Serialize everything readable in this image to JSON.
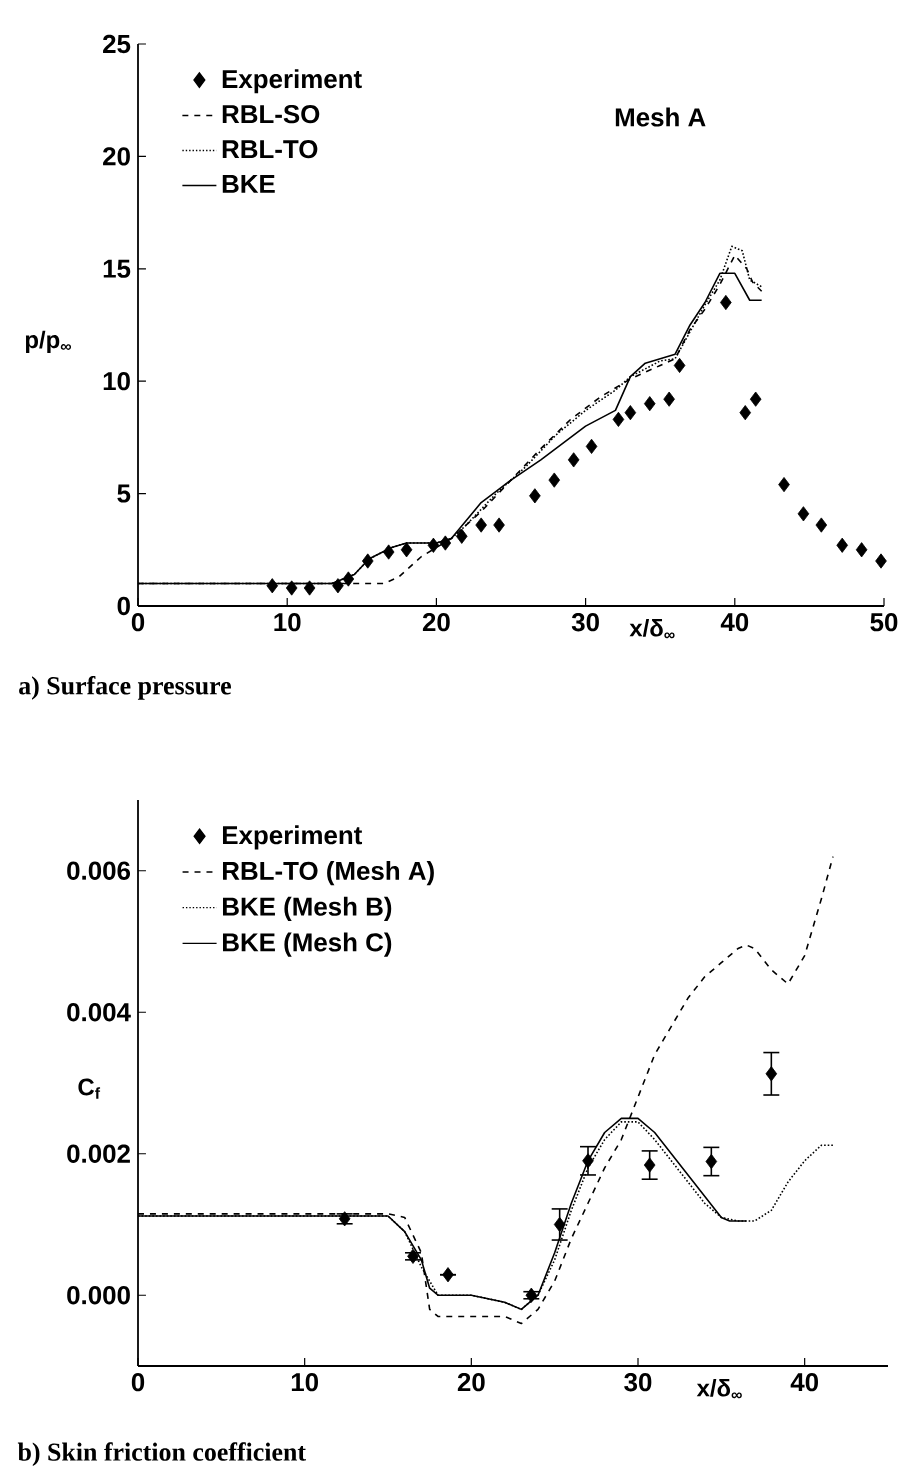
{
  "chart_data": [
    {
      "type": "line",
      "title": "a) Surface pressure",
      "xlabel": "x/δ$_{∞}$",
      "ylabel": "p/p$_{∞}$",
      "annotations": [
        "Mesh A"
      ],
      "xlim": [
        0,
        50
      ],
      "ylim": [
        0,
        25
      ],
      "xticks": [
        0,
        10,
        20,
        30,
        40,
        50
      ],
      "yticks": [
        0,
        5,
        10,
        15,
        20,
        25
      ],
      "legend": "top left",
      "grid": false,
      "series": [
        {
          "name": "Experiment",
          "type": "scatter",
          "marker": "diamond",
          "color": "#000000",
          "x": [
            9.0,
            10.3,
            11.5,
            13.4,
            14.1,
            15.4,
            16.8,
            18.0,
            19.8,
            20.6,
            21.7,
            23.0,
            24.2,
            26.6,
            27.9,
            29.2,
            30.4,
            32.2,
            33.0,
            34.3,
            35.6,
            36.3,
            39.4,
            40.7,
            41.4,
            43.3,
            44.6,
            45.8,
            47.2,
            48.5,
            49.8
          ],
          "values": [
            0.9,
            0.8,
            0.8,
            0.9,
            1.2,
            2.0,
            2.4,
            2.5,
            2.7,
            2.8,
            3.1,
            3.6,
            3.6,
            4.9,
            5.6,
            6.5,
            7.1,
            8.3,
            8.6,
            9.0,
            9.2,
            10.7,
            13.5,
            8.6,
            9.2,
            5.4,
            4.1,
            3.6,
            2.7,
            2.5,
            2.0
          ]
        },
        {
          "name": "RBL-SO",
          "line_style": "dashed",
          "color": "#000000",
          "x": [
            0,
            16.5,
            17.5,
            19,
            21,
            23,
            25,
            27,
            29,
            31,
            33,
            35,
            36,
            37,
            38,
            39,
            40,
            40.8,
            41.2,
            41.8
          ],
          "values": [
            1,
            1.0,
            1.3,
            2.2,
            3.0,
            4.2,
            5.6,
            7.0,
            8.3,
            9.3,
            10.1,
            10.7,
            11.0,
            12.3,
            13.2,
            14.3,
            15.6,
            15.0,
            14.4,
            14.0
          ]
        },
        {
          "name": "RBL-TO",
          "line_style": "dotted",
          "color": "#000000",
          "x": [
            0,
            13,
            14.5,
            15.5,
            17,
            18,
            20,
            21,
            22,
            24,
            26,
            28,
            30,
            32,
            33,
            35,
            36,
            37,
            38,
            39,
            39.8,
            40.5,
            41,
            41.8
          ],
          "values": [
            1,
            1,
            1.4,
            2.1,
            2.6,
            2.8,
            2.8,
            3.0,
            3.6,
            5.0,
            6.2,
            7.6,
            8.7,
            9.6,
            10.2,
            10.9,
            11.0,
            12.2,
            13.4,
            14.5,
            16.0,
            15.8,
            14.5,
            14.2
          ]
        },
        {
          "name": "BKE",
          "line_style": "solid",
          "color": "#000000",
          "x": [
            0,
            13,
            14.5,
            15.5,
            17,
            18,
            20,
            21,
            22,
            23,
            24,
            25,
            27,
            29,
            30,
            32,
            33,
            34,
            36,
            37,
            38,
            39,
            40,
            41,
            41.8
          ],
          "values": [
            1,
            1,
            1.4,
            2.1,
            2.6,
            2.8,
            2.8,
            3.0,
            3.8,
            4.6,
            5.1,
            5.6,
            6.5,
            7.5,
            8.0,
            8.7,
            10.2,
            10.8,
            11.2,
            12.5,
            13.5,
            14.8,
            14.8,
            13.6,
            13.6
          ]
        }
      ]
    },
    {
      "type": "line",
      "title": "b) Skin friction coefficient",
      "xlabel": "x/δ$_{∞}$",
      "ylabel": "C$_{f}$",
      "xlim": [
        0,
        45
      ],
      "ylim": [
        -0.001,
        0.007
      ],
      "xticks": [
        0,
        10,
        20,
        30,
        40
      ],
      "yticks": [
        {
          "value": 0,
          "label": "0.000"
        },
        0.002,
        0.004,
        0.006
      ],
      "legend": "top left",
      "grid": false,
      "series": [
        {
          "name": "Experiment",
          "type": "scatter",
          "marker": "diamond",
          "color": "#000000",
          "x": [
            12.4,
            16.5,
            18.6,
            23.6,
            25.3,
            27.0,
            30.7,
            34.4,
            38.0
          ],
          "values": [
            0.00108,
            0.00055,
            0.00029,
            0.0,
            0.001,
            0.0019,
            0.00184,
            0.00189,
            0.00313
          ],
          "errors": [
            7e-05,
            5e-05,
            null,
            5e-05,
            0.00022,
            0.0002,
            0.0002,
            0.0002,
            0.0003
          ]
        },
        {
          "name": "RBL-TO (Mesh A)",
          "line_style": "dashed",
          "color": "#000000",
          "x": [
            0,
            15,
            16,
            17,
            17.5,
            18,
            20,
            22,
            23,
            24,
            25,
            26,
            27,
            28,
            29,
            30,
            31,
            32,
            33,
            34,
            35,
            36,
            36.5,
            37,
            38,
            39,
            40,
            41,
            41.7
          ],
          "values": [
            0.00115,
            0.00115,
            0.0011,
            0.0006,
            -0.0002,
            -0.0003,
            -0.0003,
            -0.0003,
            -0.0004,
            -0.0002,
            0.0002,
            0.0008,
            0.0013,
            0.0018,
            0.0022,
            0.0028,
            0.0034,
            0.0038,
            0.0042,
            0.0045,
            0.0047,
            0.0049,
            0.00495,
            0.0049,
            0.0046,
            0.0044,
            0.0048,
            0.0056,
            0.0062
          ]
        },
        {
          "name": "BKE (Mesh B)",
          "line_style": "dotted",
          "color": "#000000",
          "x": [
            0,
            15,
            16,
            17,
            18,
            20,
            22,
            23,
            24,
            25,
            26,
            27,
            28,
            29,
            30,
            31,
            32,
            33,
            34,
            35,
            36,
            37,
            38,
            39,
            40,
            41,
            41.7
          ],
          "values": [
            0.00112,
            0.00112,
            0.0009,
            0.0004,
            0.0,
            0.0,
            -0.0001,
            -0.0002,
            0.0,
            0.0005,
            0.0012,
            0.0018,
            0.0022,
            0.00245,
            0.00245,
            0.0022,
            0.0019,
            0.0016,
            0.0013,
            0.0011,
            0.00105,
            0.00105,
            0.0012,
            0.0016,
            0.0019,
            0.00212,
            0.00212
          ]
        },
        {
          "name": "BKE (Mesh C)",
          "line_style": "solid",
          "color": "#000000",
          "x": [
            0,
            15,
            16,
            17,
            17.5,
            18,
            20,
            22,
            23,
            24,
            25,
            26,
            27,
            28,
            29,
            30,
            31,
            32,
            33,
            34,
            35,
            35.5,
            36.5
          ],
          "values": [
            0.00112,
            0.00112,
            0.0009,
            0.0005,
            0.0001,
            0.0,
            0.0,
            -0.0001,
            -0.0002,
            0.0,
            0.0006,
            0.0013,
            0.0019,
            0.0023,
            0.0025,
            0.0025,
            0.0023,
            0.002,
            0.0017,
            0.0014,
            0.0011,
            0.00105,
            0.00105
          ]
        }
      ]
    }
  ]
}
